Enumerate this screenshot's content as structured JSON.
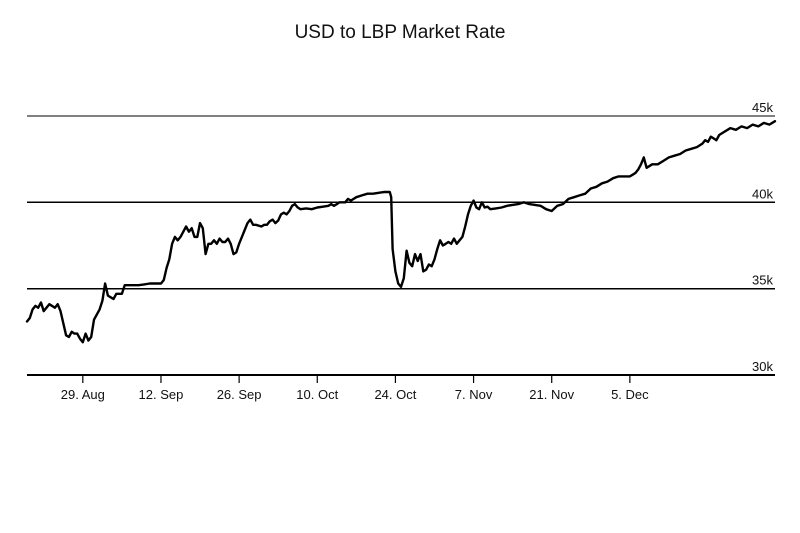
{
  "chart_data": {
    "type": "line",
    "title": "USD to LBP Market Rate",
    "xlabel": "",
    "ylabel": "",
    "ylim": [
      30000,
      45000
    ],
    "xlim": [
      "2022-08-19",
      "2022-12-31"
    ],
    "yticks": [
      {
        "value": 30000,
        "label": "30k"
      },
      {
        "value": 35000,
        "label": "35k"
      },
      {
        "value": 40000,
        "label": "40k"
      },
      {
        "value": 45000,
        "label": "45k"
      }
    ],
    "xticks": [
      {
        "date": "2022-08-29",
        "label": "29. Aug"
      },
      {
        "date": "2022-09-12",
        "label": "12. Sep"
      },
      {
        "date": "2022-09-26",
        "label": "26. Sep"
      },
      {
        "date": "2022-10-10",
        "label": "10. Oct"
      },
      {
        "date": "2022-10-24",
        "label": "24. Oct"
      },
      {
        "date": "2022-11-07",
        "label": "7. Nov"
      },
      {
        "date": "2022-11-21",
        "label": "21. Nov"
      },
      {
        "date": "2022-12-05",
        "label": "5. Dec"
      }
    ],
    "grid": "horizontal",
    "line_color": "#000000",
    "series": [
      {
        "name": "",
        "points": [
          [
            "2022-08-19",
            33100
          ],
          [
            "2022-08-19T12",
            33300
          ],
          [
            "2022-08-20",
            33800
          ],
          [
            "2022-08-20T12",
            34000
          ],
          [
            "2022-08-21",
            33900
          ],
          [
            "2022-08-21T12",
            34200
          ],
          [
            "2022-08-22",
            33700
          ],
          [
            "2022-08-22T12",
            33900
          ],
          [
            "2022-08-23",
            34100
          ],
          [
            "2022-08-24",
            33900
          ],
          [
            "2022-08-24T12",
            34100
          ],
          [
            "2022-08-25",
            33700
          ],
          [
            "2022-08-26",
            32300
          ],
          [
            "2022-08-26T12",
            32200
          ],
          [
            "2022-08-27",
            32500
          ],
          [
            "2022-08-27T12",
            32400
          ],
          [
            "2022-08-28",
            32400
          ],
          [
            "2022-08-28T12",
            32100
          ],
          [
            "2022-08-29",
            31900
          ],
          [
            "2022-08-29T12",
            32400
          ],
          [
            "2022-08-30",
            32000
          ],
          [
            "2022-08-30T12",
            32200
          ],
          [
            "2022-08-31",
            33200
          ],
          [
            "2022-09-01",
            33800
          ],
          [
            "2022-09-01T12",
            34300
          ],
          [
            "2022-09-02",
            35300
          ],
          [
            "2022-09-02T12",
            34600
          ],
          [
            "2022-09-03",
            34500
          ],
          [
            "2022-09-03T12",
            34400
          ],
          [
            "2022-09-04",
            34700
          ],
          [
            "2022-09-05",
            34700
          ],
          [
            "2022-09-05T12",
            35200
          ],
          [
            "2022-09-06",
            35200
          ],
          [
            "2022-09-07",
            35200
          ],
          [
            "2022-09-08",
            35200
          ],
          [
            "2022-09-09",
            35250
          ],
          [
            "2022-09-10",
            35300
          ],
          [
            "2022-09-11",
            35300
          ],
          [
            "2022-09-12",
            35300
          ],
          [
            "2022-09-12T12",
            35500
          ],
          [
            "2022-09-13",
            36200
          ],
          [
            "2022-09-13T12",
            36700
          ],
          [
            "2022-09-14",
            37600
          ],
          [
            "2022-09-14T12",
            38000
          ],
          [
            "2022-09-15",
            37800
          ],
          [
            "2022-09-15T12",
            38000
          ],
          [
            "2022-09-16",
            38300
          ],
          [
            "2022-09-16T12",
            38600
          ],
          [
            "2022-09-17",
            38300
          ],
          [
            "2022-09-17T12",
            38500
          ],
          [
            "2022-09-18",
            38000
          ],
          [
            "2022-09-18T12",
            38000
          ],
          [
            "2022-09-19",
            38800
          ],
          [
            "2022-09-19T12",
            38500
          ],
          [
            "2022-09-20",
            37000
          ],
          [
            "2022-09-20T12",
            37600
          ],
          [
            "2022-09-21",
            37600
          ],
          [
            "2022-09-21T12",
            37800
          ],
          [
            "2022-09-22",
            37600
          ],
          [
            "2022-09-22T12",
            37900
          ],
          [
            "2022-09-23",
            37700
          ],
          [
            "2022-09-23T12",
            37700
          ],
          [
            "2022-09-24",
            37900
          ],
          [
            "2022-09-24T12",
            37600
          ],
          [
            "2022-09-25",
            37000
          ],
          [
            "2022-09-25T12",
            37100
          ],
          [
            "2022-09-26",
            37600
          ],
          [
            "2022-09-26T12",
            38000
          ],
          [
            "2022-09-27",
            38400
          ],
          [
            "2022-09-27T12",
            38800
          ],
          [
            "2022-09-28",
            39000
          ],
          [
            "2022-09-28T12",
            38700
          ],
          [
            "2022-09-29",
            38700
          ],
          [
            "2022-09-30",
            38600
          ],
          [
            "2022-09-30T12",
            38700
          ],
          [
            "2022-10-01",
            38700
          ],
          [
            "2022-10-01T12",
            38900
          ],
          [
            "2022-10-02",
            39000
          ],
          [
            "2022-10-02T12",
            38800
          ],
          [
            "2022-10-03",
            38950
          ],
          [
            "2022-10-03T12",
            39300
          ],
          [
            "2022-10-04",
            39400
          ],
          [
            "2022-10-04T12",
            39300
          ],
          [
            "2022-10-05",
            39500
          ],
          [
            "2022-10-05T12",
            39800
          ],
          [
            "2022-10-06",
            39900
          ],
          [
            "2022-10-06T12",
            39700
          ],
          [
            "2022-10-07",
            39600
          ],
          [
            "2022-10-08",
            39650
          ],
          [
            "2022-10-09",
            39600
          ],
          [
            "2022-10-10",
            39700
          ],
          [
            "2022-10-11",
            39750
          ],
          [
            "2022-10-12",
            39800
          ],
          [
            "2022-10-12T12",
            39900
          ],
          [
            "2022-10-13",
            39800
          ],
          [
            "2022-10-13T12",
            39900
          ],
          [
            "2022-10-14",
            40000
          ],
          [
            "2022-10-15",
            40000
          ],
          [
            "2022-10-15T12",
            40200
          ],
          [
            "2022-10-16",
            40100
          ],
          [
            "2022-10-17",
            40300
          ],
          [
            "2022-10-18",
            40400
          ],
          [
            "2022-10-19",
            40500
          ],
          [
            "2022-10-20",
            40500
          ],
          [
            "2022-10-21",
            40550
          ],
          [
            "2022-10-22",
            40600
          ],
          [
            "2022-10-23",
            40600
          ],
          [
            "2022-10-23T06",
            40300
          ],
          [
            "2022-10-23T12",
            37300
          ],
          [
            "2022-10-24",
            36000
          ],
          [
            "2022-10-24T12",
            35300
          ],
          [
            "2022-10-25",
            35100
          ],
          [
            "2022-10-25T12",
            35600
          ],
          [
            "2022-10-26",
            37200
          ],
          [
            "2022-10-26T12",
            36500
          ],
          [
            "2022-10-27",
            36300
          ],
          [
            "2022-10-27T12",
            37000
          ],
          [
            "2022-10-28",
            36600
          ],
          [
            "2022-10-28T12",
            37000
          ],
          [
            "2022-10-29",
            36000
          ],
          [
            "2022-10-29T12",
            36100
          ],
          [
            "2022-10-30",
            36400
          ],
          [
            "2022-10-30T12",
            36300
          ],
          [
            "2022-10-31",
            36700
          ],
          [
            "2022-10-31T12",
            37300
          ],
          [
            "2022-11-01",
            37800
          ],
          [
            "2022-11-01T12",
            37500
          ],
          [
            "2022-11-02",
            37600
          ],
          [
            "2022-11-02T12",
            37700
          ],
          [
            "2022-11-03",
            37600
          ],
          [
            "2022-11-03T12",
            37900
          ],
          [
            "2022-11-04",
            37600
          ],
          [
            "2022-11-04T12",
            37800
          ],
          [
            "2022-11-05",
            38000
          ],
          [
            "2022-11-05T12",
            38600
          ],
          [
            "2022-11-06",
            39300
          ],
          [
            "2022-11-06T12",
            39800
          ],
          [
            "2022-11-07",
            40100
          ],
          [
            "2022-11-07T12",
            39700
          ],
          [
            "2022-11-08",
            39600
          ],
          [
            "2022-11-08T12",
            40000
          ],
          [
            "2022-11-09",
            39700
          ],
          [
            "2022-11-09T12",
            39750
          ],
          [
            "2022-11-10",
            39600
          ],
          [
            "2022-11-11",
            39650
          ],
          [
            "2022-11-12",
            39700
          ],
          [
            "2022-11-13",
            39800
          ],
          [
            "2022-11-14",
            39850
          ],
          [
            "2022-11-15",
            39900
          ],
          [
            "2022-11-16",
            40000
          ],
          [
            "2022-11-17",
            39900
          ],
          [
            "2022-11-18",
            39850
          ],
          [
            "2022-11-19",
            39800
          ],
          [
            "2022-11-20",
            39600
          ],
          [
            "2022-11-21",
            39500
          ],
          [
            "2022-11-22",
            39800
          ],
          [
            "2022-11-23",
            39900
          ],
          [
            "2022-11-24",
            40200
          ],
          [
            "2022-11-25",
            40300
          ],
          [
            "2022-11-26",
            40400
          ],
          [
            "2022-11-27",
            40500
          ],
          [
            "2022-11-28",
            40800
          ],
          [
            "2022-11-29",
            40900
          ],
          [
            "2022-11-30",
            41100
          ],
          [
            "2022-12-01",
            41200
          ],
          [
            "2022-12-02",
            41400
          ],
          [
            "2022-12-03",
            41500
          ],
          [
            "2022-12-04",
            41500
          ],
          [
            "2022-12-05",
            41500
          ],
          [
            "2022-12-05T12",
            41600
          ],
          [
            "2022-12-06",
            41700
          ],
          [
            "2022-12-06T12",
            41900
          ],
          [
            "2022-12-07",
            42200
          ],
          [
            "2022-12-07T12",
            42600
          ],
          [
            "2022-12-08",
            42000
          ],
          [
            "2022-12-09",
            42200
          ],
          [
            "2022-12-10",
            42200
          ],
          [
            "2022-12-11",
            42400
          ],
          [
            "2022-12-12",
            42600
          ],
          [
            "2022-12-13",
            42700
          ],
          [
            "2022-12-14",
            42800
          ],
          [
            "2022-12-15",
            43000
          ],
          [
            "2022-12-16",
            43100
          ],
          [
            "2022-12-17",
            43200
          ],
          [
            "2022-12-18",
            43400
          ],
          [
            "2022-12-18T12",
            43600
          ],
          [
            "2022-12-19",
            43500
          ],
          [
            "2022-12-19T12",
            43800
          ],
          [
            "2022-12-20",
            43700
          ],
          [
            "2022-12-20T12",
            43600
          ],
          [
            "2022-12-21",
            43900
          ],
          [
            "2022-12-22",
            44100
          ],
          [
            "2022-12-22T12",
            44200
          ],
          [
            "2022-12-23",
            44300
          ],
          [
            "2022-12-24",
            44200
          ],
          [
            "2022-12-25",
            44400
          ],
          [
            "2022-12-26",
            44300
          ],
          [
            "2022-12-27",
            44500
          ],
          [
            "2022-12-28",
            44400
          ],
          [
            "2022-12-29",
            44600
          ],
          [
            "2022-12-30",
            44500
          ],
          [
            "2022-12-31",
            44700
          ]
        ]
      }
    ]
  }
}
